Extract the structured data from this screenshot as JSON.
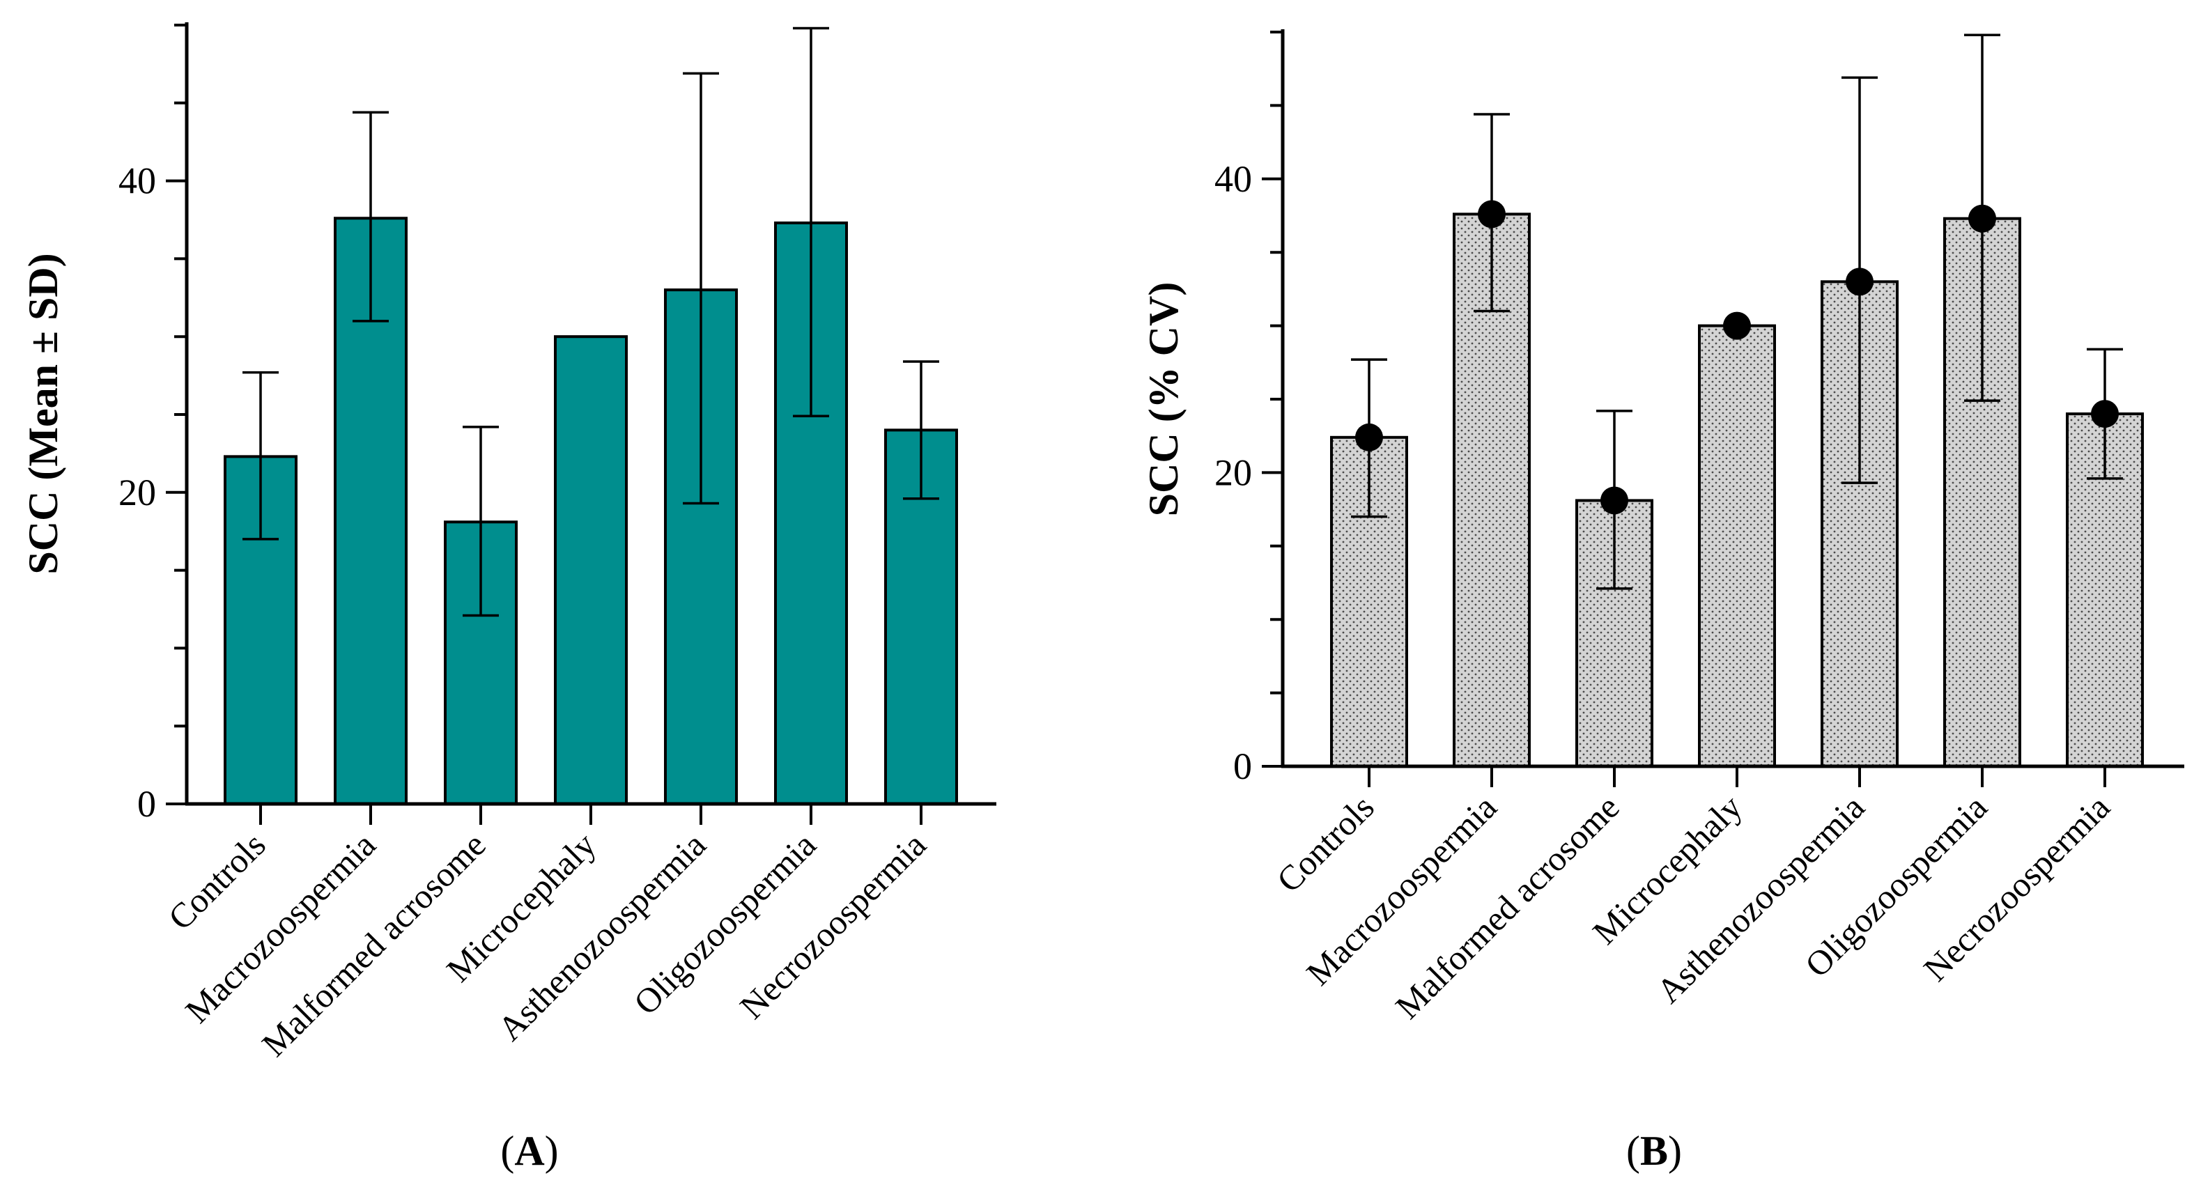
{
  "chart_data": [
    {
      "type": "bar",
      "panel": "(A)",
      "panel_letter": "A",
      "ylabel": "SCC (Mean ± SD)",
      "ylim": [
        0,
        50
      ],
      "yticks_major": [
        0,
        20,
        40
      ],
      "categories": [
        "Controls",
        "Macrozoospermia",
        "Malformed acrosome",
        "Microcephaly",
        "Asthenozoospermia",
        "Oligozoospermia",
        "Necrozoospermia"
      ],
      "values": [
        22.3,
        37.6,
        18.1,
        30.0,
        33.0,
        37.3,
        24.0
      ],
      "error_low": [
        17.0,
        31.0,
        12.1,
        null,
        19.3,
        24.9,
        19.6
      ],
      "error_high": [
        27.7,
        44.4,
        24.2,
        null,
        46.9,
        49.8,
        28.4
      ],
      "bar_color": "#008e8e",
      "points": false
    },
    {
      "type": "bar",
      "panel": "(B)",
      "panel_letter": "B",
      "ylabel": "SCC (% CV)",
      "ylim": [
        0,
        50
      ],
      "yticks_major": [
        0,
        20,
        40
      ],
      "categories": [
        "Controls",
        "Macrozoospermia",
        "Malformed acrosome",
        "Microcephaly",
        "Asthenozoospermia",
        "Oligozoospermia",
        "Necrozoospermia"
      ],
      "values": [
        22.4,
        37.6,
        18.1,
        30.0,
        33.0,
        37.3,
        24.0
      ],
      "error_low": [
        17.0,
        31.0,
        12.1,
        null,
        19.3,
        24.9,
        19.6
      ],
      "error_high": [
        27.7,
        44.4,
        24.2,
        null,
        46.9,
        49.8,
        28.4
      ],
      "bar_color": "#d4d4d4",
      "pattern": "dotted",
      "points": true,
      "point_color": "#000000"
    }
  ]
}
